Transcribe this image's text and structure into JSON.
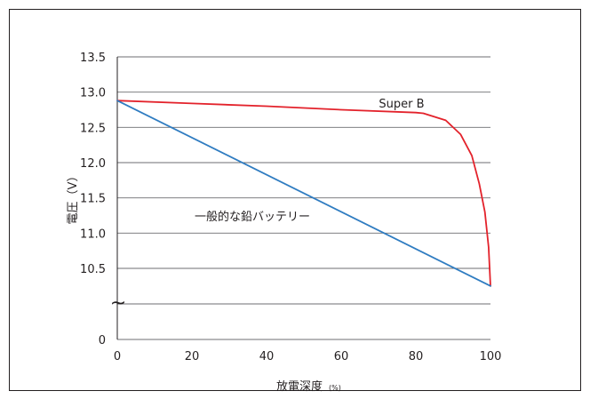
{
  "chart_data": {
    "type": "line",
    "title": "",
    "xlabel_main": "放電深度",
    "xlabel_unit": "(%)",
    "ylabel": "電圧（V）",
    "x_ticks": [
      "0",
      "20",
      "40",
      "60",
      "80",
      "100"
    ],
    "y_ticks": [
      "0",
      "10.5",
      "11.0",
      "11.5",
      "12.0",
      "12.5",
      "13.0",
      "13.5"
    ],
    "y_break_symbol": "~",
    "xlim": [
      0,
      100
    ],
    "ylim_upper": [
      10.5,
      13.5
    ],
    "grid": true,
    "series": [
      {
        "name": "Super B",
        "color": "#e3222b",
        "x": [
          0,
          20,
          40,
          60,
          80,
          82,
          88,
          92,
          95,
          97,
          98.5,
          99.5,
          100
        ],
        "y": [
          12.88,
          12.84,
          12.8,
          12.75,
          12.71,
          12.7,
          12.6,
          12.4,
          12.1,
          11.7,
          11.3,
          10.8,
          10.25
        ]
      },
      {
        "name": "一般的な鉛バッテリー",
        "color": "#2f7cc1",
        "x": [
          0,
          100
        ],
        "y": [
          12.88,
          10.25
        ]
      }
    ]
  }
}
